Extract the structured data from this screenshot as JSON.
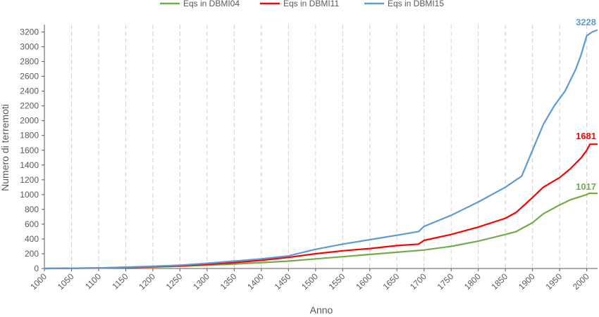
{
  "chart_data": {
    "type": "line",
    "title": "",
    "xlabel": "Anno",
    "ylabel": "Numero di terremoti",
    "xlim": [
      1000,
      2020
    ],
    "ylim": [
      0,
      3300
    ],
    "x_ticks": [
      1000,
      1050,
      1100,
      1150,
      1200,
      1250,
      1300,
      1350,
      1400,
      1450,
      1500,
      1550,
      1600,
      1650,
      1700,
      1750,
      1800,
      1850,
      1900,
      1950,
      2000
    ],
    "y_ticks": [
      0,
      200,
      400,
      600,
      800,
      1000,
      1200,
      1400,
      1600,
      1800,
      2000,
      2200,
      2400,
      2600,
      2800,
      3000,
      3200
    ],
    "grid": "vertical-dashed",
    "legend_position": "top",
    "series": [
      {
        "name": "Eqs in DBMI04",
        "color": "#70AD47",
        "end_label": "1017",
        "x": [
          1000,
          1050,
          1100,
          1150,
          1200,
          1250,
          1300,
          1350,
          1400,
          1450,
          1500,
          1550,
          1600,
          1650,
          1700,
          1750,
          1800,
          1850,
          1870,
          1900,
          1920,
          1950,
          1970,
          2000,
          2004,
          2020
        ],
        "y": [
          0,
          3,
          6,
          12,
          20,
          30,
          45,
          60,
          80,
          100,
          130,
          160,
          190,
          220,
          250,
          300,
          370,
          460,
          500,
          620,
          740,
          860,
          930,
          1000,
          1017,
          1017
        ]
      },
      {
        "name": "Eqs in DBMI11",
        "color": "#FF0000",
        "end_label": "1681",
        "x": [
          1000,
          1050,
          1100,
          1150,
          1200,
          1250,
          1300,
          1350,
          1400,
          1450,
          1500,
          1550,
          1600,
          1650,
          1690,
          1700,
          1750,
          1800,
          1850,
          1870,
          1900,
          1920,
          1950,
          1970,
          1990,
          2000,
          2006,
          2020
        ],
        "y": [
          0,
          3,
          7,
          15,
          25,
          35,
          55,
          80,
          110,
          150,
          200,
          240,
          270,
          310,
          330,
          380,
          460,
          560,
          680,
          760,
          960,
          1100,
          1230,
          1350,
          1500,
          1600,
          1681,
          1681
        ]
      },
      {
        "name": "Eqs in DBMI15",
        "color": "#5B9BD5",
        "end_label": "3228",
        "x": [
          1000,
          1050,
          1100,
          1150,
          1200,
          1250,
          1300,
          1350,
          1400,
          1450,
          1500,
          1550,
          1600,
          1650,
          1690,
          1700,
          1750,
          1800,
          1850,
          1880,
          1900,
          1920,
          1940,
          1960,
          1980,
          1990,
          2000,
          2010,
          2020
        ],
        "y": [
          0,
          4,
          8,
          18,
          30,
          45,
          70,
          100,
          130,
          170,
          260,
          330,
          390,
          450,
          500,
          570,
          720,
          900,
          1100,
          1250,
          1600,
          1950,
          2200,
          2400,
          2700,
          2900,
          3150,
          3200,
          3228
        ]
      }
    ]
  }
}
